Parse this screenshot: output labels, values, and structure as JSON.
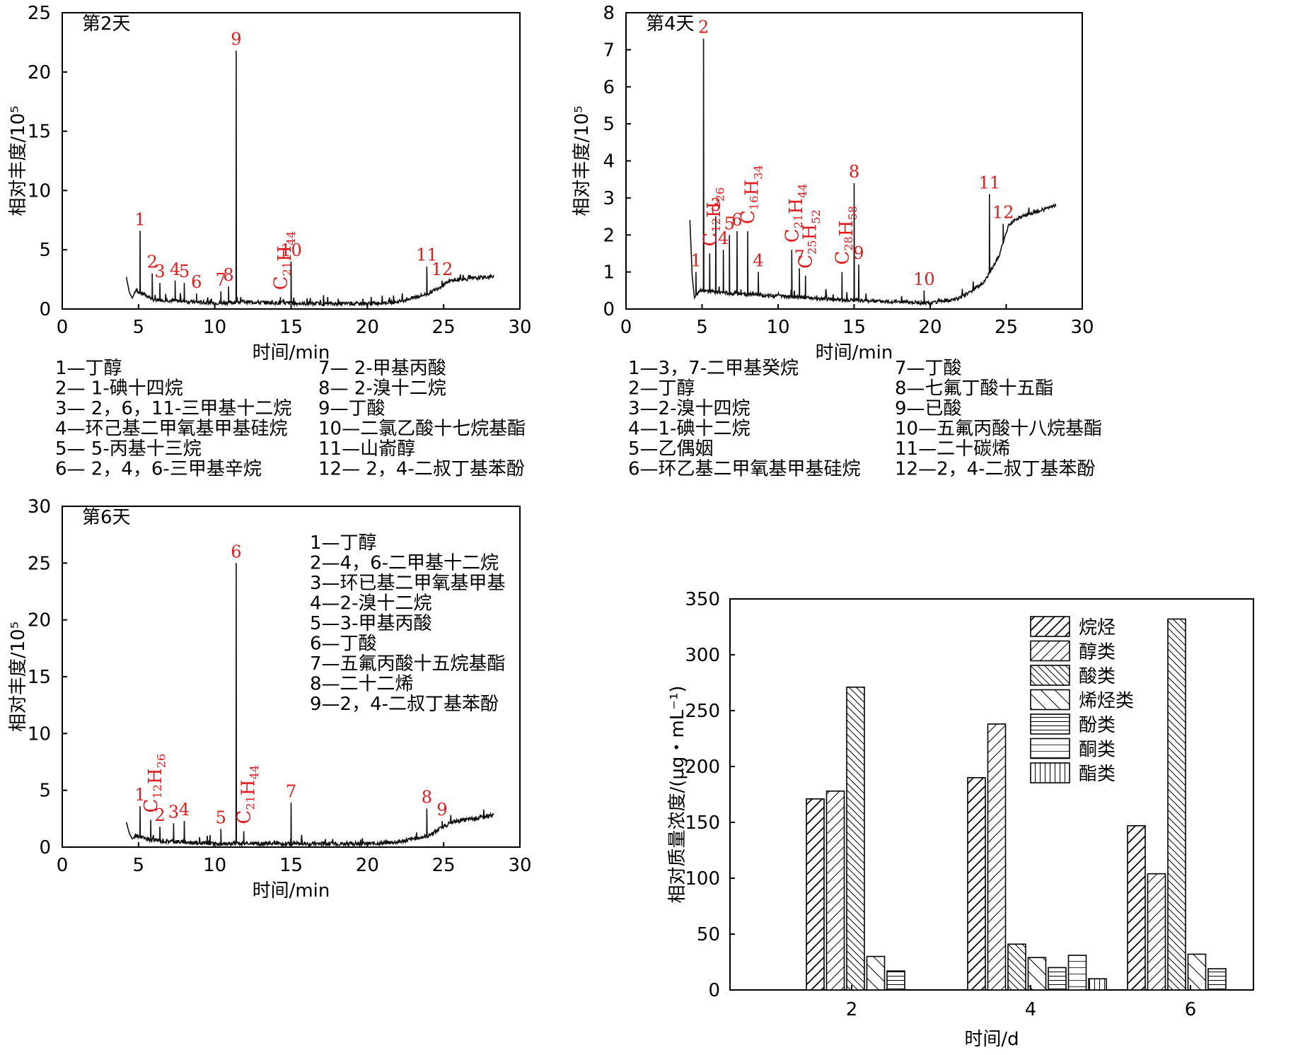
{
  "chart_data": [
    {
      "type": "line",
      "panel_label": "第2天",
      "xlabel": "时间/min",
      "ylabel": "相对丰度/10⁵",
      "xlim": [
        0,
        30
      ],
      "ylim": [
        0,
        25
      ],
      "xticks": [
        0,
        5,
        10,
        15,
        20,
        25,
        30
      ],
      "yticks": [
        0,
        5,
        10,
        15,
        20,
        25
      ],
      "peaks": [
        {
          "label": "1",
          "x": 5.1,
          "y": 6.6
        },
        {
          "label": "2",
          "x": 5.9,
          "y": 3.0
        },
        {
          "label": "3",
          "x": 6.4,
          "y": 2.2
        },
        {
          "label": "4",
          "x": 7.4,
          "y": 2.4
        },
        {
          "label": "5",
          "x": 8.0,
          "y": 2.2
        },
        {
          "label": "6",
          "x": 8.8,
          "y": 1.3
        },
        {
          "label": "7",
          "x": 10.4,
          "y": 1.5
        },
        {
          "label": "8",
          "x": 10.9,
          "y": 1.9
        },
        {
          "label": "9",
          "x": 11.4,
          "y": 21.8
        },
        {
          "label": "C₂₁H₄₄",
          "x": 14.3,
          "y": 1.0
        },
        {
          "label": "10",
          "x": 15.0,
          "y": 4.0
        },
        {
          "label": "11",
          "x": 23.9,
          "y": 3.6
        },
        {
          "label": "12",
          "x": 24.9,
          "y": 2.4
        }
      ],
      "legend": [
        "1—丁醇",
        "2— 1-碘十四烷",
        "3— 2，6，11-三甲基十二烷",
        "4—环己基二甲氧基甲基硅烷",
        "5— 5-丙基十三烷",
        "6— 2，4，6-三甲基辛烷",
        "7— 2-甲基丙酸",
        "8— 2-溴十二烷",
        "9—丁酸",
        "10—二氯乙酸十七烷基酯",
        "11—山嵛醇",
        "12— 2，4-二叔丁基苯酚"
      ]
    },
    {
      "type": "line",
      "panel_label": "第4天",
      "xlabel": "时间/min",
      "ylabel": "相对丰度/10⁵",
      "xlim": [
        0,
        30
      ],
      "ylim": [
        0,
        8
      ],
      "xticks": [
        0,
        5,
        10,
        15,
        20,
        25,
        30
      ],
      "yticks": [
        0,
        1,
        2,
        3,
        4,
        5,
        6,
        7,
        8
      ],
      "peaks": [
        {
          "label": "1",
          "x": 4.6,
          "y": 1.0
        },
        {
          "label": "2",
          "x": 5.1,
          "y": 7.3
        },
        {
          "label": "C₁₂H₂₆",
          "x": 5.5,
          "y": 1.5
        },
        {
          "label": "3",
          "x": 5.9,
          "y": 2.5
        },
        {
          "label": "4",
          "x": 6.4,
          "y": 1.6
        },
        {
          "label": "5",
          "x": 6.8,
          "y": 2.0
        },
        {
          "label": "6",
          "x": 7.3,
          "y": 2.1
        },
        {
          "label": "C₁₆H₃₄",
          "x": 8.0,
          "y": 2.1
        },
        {
          "label": "4",
          "x": 8.7,
          "y": 1.0
        },
        {
          "label": "C₂₁H₄₄",
          "x": 10.9,
          "y": 1.6
        },
        {
          "label": "7",
          "x": 11.4,
          "y": 1.1
        },
        {
          "label": "C₂₅H₅₂",
          "x": 11.8,
          "y": 0.9
        },
        {
          "label": "C₂₈H₅₈",
          "x": 14.2,
          "y": 1.0
        },
        {
          "label": "8",
          "x": 15.0,
          "y": 3.4
        },
        {
          "label": "9",
          "x": 15.3,
          "y": 1.2
        },
        {
          "label": "10",
          "x": 19.6,
          "y": 0.5
        },
        {
          "label": "11",
          "x": 23.9,
          "y": 3.1
        },
        {
          "label": "12",
          "x": 24.8,
          "y": 2.3
        }
      ],
      "legend": [
        "1—3，7-二甲基癸烷",
        "2—丁醇",
        "3—2-溴十四烷",
        "4—1-碘十二烷",
        "5—乙偶姻",
        "6—环乙基二甲氧基甲基硅烷",
        "7—丁酸",
        "8—七氟丁酸十五酯",
        "9—已酸",
        "10—五氟丙酸十八烷基酯",
        "11—二十碳烯",
        "12—2，4-二叔丁基苯酚"
      ]
    },
    {
      "type": "line",
      "panel_label": "第6天",
      "xlabel": "时间/min",
      "ylabel": "相对丰度/10⁵",
      "xlim": [
        0,
        30
      ],
      "ylim": [
        0,
        30
      ],
      "xticks": [
        0,
        5,
        10,
        15,
        20,
        25,
        30
      ],
      "yticks": [
        0,
        5,
        10,
        15,
        20,
        25,
        30
      ],
      "peaks": [
        {
          "label": "1",
          "x": 5.1,
          "y": 3.6
        },
        {
          "label": "C₁₂H₂₆",
          "x": 5.8,
          "y": 2.4
        },
        {
          "label": "2",
          "x": 6.4,
          "y": 1.8
        },
        {
          "label": "3",
          "x": 7.3,
          "y": 2.1
        },
        {
          "label": "4",
          "x": 8.0,
          "y": 2.3
        },
        {
          "label": "5",
          "x": 10.4,
          "y": 1.6
        },
        {
          "label": "6",
          "x": 11.4,
          "y": 25.0
        },
        {
          "label": "C₂₁H₄₄",
          "x": 11.9,
          "y": 1.4
        },
        {
          "label": "7",
          "x": 15.0,
          "y": 3.9
        },
        {
          "label": "8",
          "x": 23.9,
          "y": 3.4
        },
        {
          "label": "9",
          "x": 24.9,
          "y": 2.3
        }
      ],
      "legend": [
        "1—丁醇",
        "2—4，6-二甲基十二烷",
        "3—环已基二甲氧基甲基",
        "4—2-溴十二烷",
        "5—3-甲基丙酸",
        "6—丁酸",
        "7—五氟丙酸十五烷基酯",
        "8—二十二烯",
        "9—2，4-二叔丁基苯酚"
      ]
    },
    {
      "type": "bar",
      "xlabel": "时间/d",
      "ylabel": "相对质量浓度/(μg・mL⁻¹)",
      "ylim": [
        0,
        350
      ],
      "yticks": [
        0,
        50,
        100,
        150,
        200,
        250,
        300,
        350
      ],
      "categories": [
        "2",
        "4",
        "6"
      ],
      "series": [
        {
          "name": "烷烃",
          "values": [
            171,
            190,
            147
          ]
        },
        {
          "name": "醇类",
          "values": [
            178,
            238,
            104
          ]
        },
        {
          "name": "酸类",
          "values": [
            271,
            41,
            332
          ]
        },
        {
          "name": "烯烃类",
          "values": [
            30,
            29,
            32
          ]
        },
        {
          "name": "酚类",
          "values": [
            17,
            20,
            19
          ]
        },
        {
          "name": "酮类",
          "values": [
            0,
            31,
            0
          ]
        },
        {
          "name": "酯类",
          "values": [
            0,
            10,
            0
          ]
        }
      ],
      "legend_position": "top-right"
    }
  ]
}
